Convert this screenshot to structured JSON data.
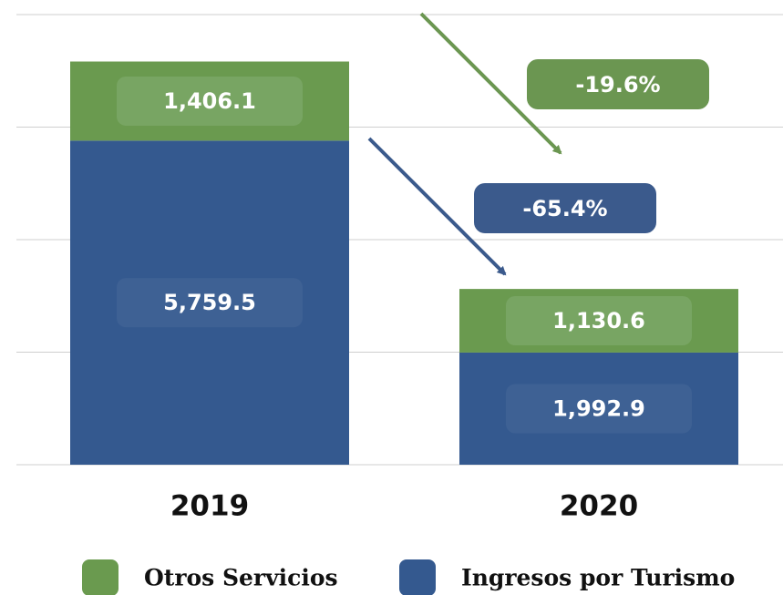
{
  "chart_data": {
    "type": "bar",
    "stacked": true,
    "categories": [
      "2019",
      "2020"
    ],
    "series": [
      {
        "name": "Otros Servicios",
        "color": "#6a9a4f",
        "label_color": "#78a563",
        "values": [
          1406.1,
          1130.6
        ],
        "value_labels": [
          "1,406.1",
          "1,130.6"
        ]
      },
      {
        "name": "Ingresos por Turismo",
        "color": "#34598f",
        "label_color": "#3e6194",
        "values": [
          5759.5,
          1992.9
        ],
        "value_labels": [
          "5,759.5",
          "1,992.9"
        ]
      }
    ],
    "ylim": [
      0,
      8000
    ],
    "yticks": [
      0,
      2000,
      4000,
      6000,
      8000
    ],
    "grid": true,
    "legend": "bottom",
    "annotations": [
      {
        "text": "-19.6%",
        "color": "#6b9651"
      },
      {
        "text": "-65.4%",
        "color": "#3b5a8c"
      }
    ]
  }
}
